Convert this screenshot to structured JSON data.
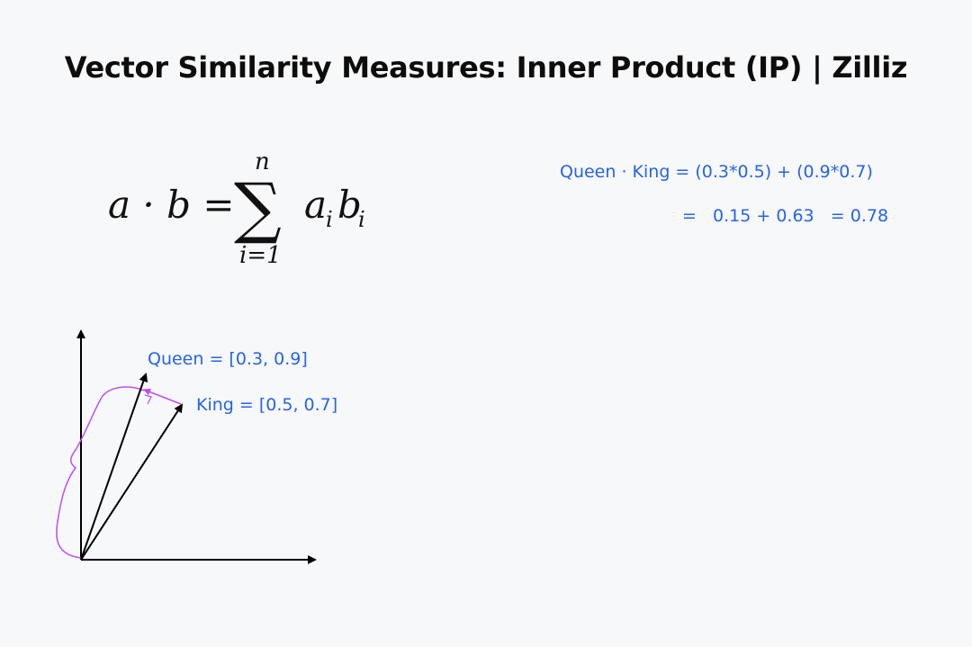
{
  "title": "Vector Similarity Measures: Inner Product (IP) | Zilliz",
  "formula": {
    "lhs": "a · b =",
    "sum_symbol": "∑",
    "upper_limit": "n",
    "lower_limit": "i=1",
    "term_a": "a",
    "term_a_sub": "i",
    "term_b": "b",
    "term_b_sub": "i"
  },
  "calculation": {
    "line1": "Queen · King = (0.3*0.5) + (0.9*0.7)",
    "line2": "=   0.15 + 0.63   = 0.78"
  },
  "vectors": {
    "queen_label": "Queen = [0.3, 0.9]",
    "king_label": "King = [0.5, 0.7]",
    "queen": [
      0.3,
      0.9
    ],
    "king": [
      0.5,
      0.7
    ]
  },
  "colors": {
    "text_accent": "#2563eb",
    "projection": "#c04df5",
    "axis": "#000000",
    "background": "#f7f8fa"
  }
}
